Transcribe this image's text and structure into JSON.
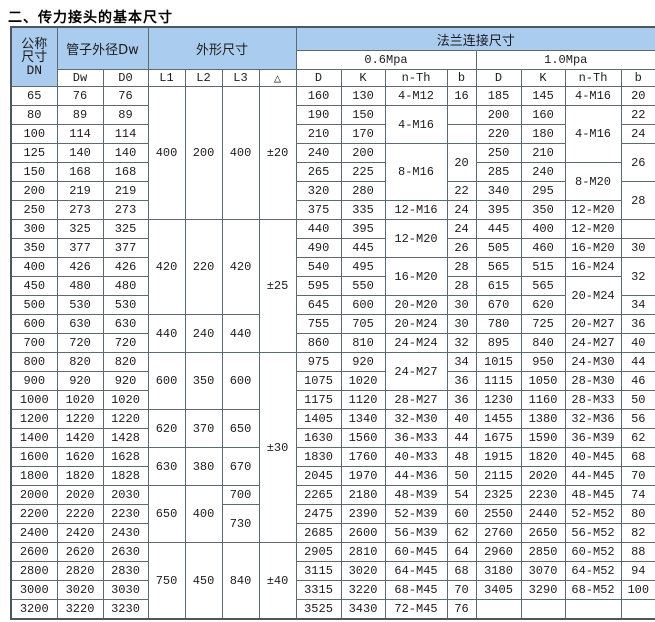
{
  "page": {
    "title": "二、传力接头的基本尺寸"
  },
  "colors": {
    "header_bg": "#aaccee",
    "border": "#5e6a72",
    "page_bg": "#ffffff",
    "text": "#1c1c1c"
  },
  "table": {
    "headers": {
      "dn_lines": [
        "公称",
        "尺寸",
        "DN"
      ],
      "pipe_od": "管子外径Dw",
      "outline": "外形尺寸",
      "flange": "法兰连接尺寸",
      "p06": "0.6Mpa",
      "p10": "1.0Mpa",
      "cols": [
        "Dw",
        "D0",
        "L1",
        "L2",
        "L3",
        "△",
        "D",
        "K",
        "n-Th",
        "b",
        "D",
        "K",
        "n-Th",
        "b"
      ]
    },
    "rows": [
      {
        "c": [
          [
            "65"
          ],
          [
            "76"
          ],
          [
            "76"
          ],
          [
            "400",
            7
          ],
          [
            "200",
            7
          ],
          [
            "400",
            7
          ],
          [
            "±20",
            7
          ],
          [
            "160"
          ],
          [
            "130"
          ],
          [
            "4-M12"
          ],
          [
            "16"
          ],
          [
            "185"
          ],
          [
            "145"
          ],
          [
            "4-M16"
          ],
          [
            "20"
          ]
        ]
      },
      {
        "c": [
          [
            "80"
          ],
          [
            "89"
          ],
          [
            "89"
          ],
          [
            "190"
          ],
          [
            "150"
          ],
          [
            "4-M16",
            2
          ],
          [
            ""
          ],
          [
            "200"
          ],
          [
            "160"
          ],
          [
            "4-M16",
            3
          ],
          [
            "22"
          ]
        ]
      },
      {
        "c": [
          [
            "100"
          ],
          [
            "114"
          ],
          [
            "114"
          ],
          [
            "210"
          ],
          [
            "170"
          ],
          [
            ""
          ],
          [
            "220"
          ],
          [
            "180"
          ],
          [
            "24"
          ]
        ]
      },
      {
        "c": [
          [
            "125"
          ],
          [
            "140"
          ],
          [
            "140"
          ],
          [
            "240"
          ],
          [
            "200"
          ],
          [
            "8-M16",
            3
          ],
          [
            "20",
            2
          ],
          [
            "250"
          ],
          [
            "210"
          ],
          [
            "26",
            2
          ]
        ]
      },
      {
        "c": [
          [
            "150"
          ],
          [
            "168"
          ],
          [
            "168"
          ],
          [
            "265"
          ],
          [
            "225"
          ],
          [
            "285"
          ],
          [
            "240"
          ],
          [
            "8-M20",
            2
          ]
        ]
      },
      {
        "c": [
          [
            "200"
          ],
          [
            "219"
          ],
          [
            "219"
          ],
          [
            "320"
          ],
          [
            "280"
          ],
          [
            "22"
          ],
          [
            "340"
          ],
          [
            "295"
          ],
          [
            "28",
            2
          ]
        ]
      },
      {
        "c": [
          [
            "250"
          ],
          [
            "273"
          ],
          [
            "273"
          ],
          [
            "375"
          ],
          [
            "335"
          ],
          [
            "12-M16"
          ],
          [
            "24"
          ],
          [
            "395"
          ],
          [
            "350"
          ],
          [
            "12-M20"
          ]
        ]
      },
      {
        "c": [
          [
            "300"
          ],
          [
            "325"
          ],
          [
            "325"
          ],
          [
            "420",
            5
          ],
          [
            "220",
            5
          ],
          [
            "420",
            5
          ],
          [
            "±25",
            7
          ],
          [
            "440"
          ],
          [
            "395"
          ],
          [
            "12-M20",
            2
          ],
          [
            "24"
          ],
          [
            "445"
          ],
          [
            "400"
          ],
          [
            "12-M20"
          ],
          [
            ""
          ]
        ]
      },
      {
        "c": [
          [
            "350"
          ],
          [
            "377"
          ],
          [
            "377"
          ],
          [
            "490"
          ],
          [
            "445"
          ],
          [
            "26"
          ],
          [
            "505"
          ],
          [
            "460"
          ],
          [
            "16-M20"
          ],
          [
            "30"
          ]
        ]
      },
      {
        "c": [
          [
            "400"
          ],
          [
            "426"
          ],
          [
            "426"
          ],
          [
            "540"
          ],
          [
            "495"
          ],
          [
            "16-M20",
            2
          ],
          [
            "28"
          ],
          [
            "565"
          ],
          [
            "515"
          ],
          [
            "16-M24"
          ],
          [
            "32",
            2
          ]
        ]
      },
      {
        "c": [
          [
            "450"
          ],
          [
            "480"
          ],
          [
            "480"
          ],
          [
            "595"
          ],
          [
            "550"
          ],
          [
            "28"
          ],
          [
            "615"
          ],
          [
            "565"
          ],
          [
            "20-M24",
            2
          ]
        ]
      },
      {
        "c": [
          [
            "500"
          ],
          [
            "530"
          ],
          [
            "530"
          ],
          [
            "645"
          ],
          [
            "600"
          ],
          [
            "20-M20"
          ],
          [
            "30"
          ],
          [
            "670"
          ],
          [
            "620"
          ],
          [
            "34"
          ]
        ]
      },
      {
        "c": [
          [
            "600"
          ],
          [
            "630"
          ],
          [
            "630"
          ],
          [
            "440",
            2
          ],
          [
            "240",
            2
          ],
          [
            "440",
            2
          ],
          [
            "755"
          ],
          [
            "705"
          ],
          [
            "20-M24"
          ],
          [
            "30"
          ],
          [
            "780"
          ],
          [
            "725"
          ],
          [
            "20-M27"
          ],
          [
            "36"
          ]
        ]
      },
      {
        "c": [
          [
            "700"
          ],
          [
            "720"
          ],
          [
            "720"
          ],
          [
            "860"
          ],
          [
            "810"
          ],
          [
            "24-M24"
          ],
          [
            "32"
          ],
          [
            "895"
          ],
          [
            "840"
          ],
          [
            "24-M27"
          ],
          [
            "40"
          ]
        ]
      },
      {
        "c": [
          [
            "800"
          ],
          [
            "820"
          ],
          [
            "820"
          ],
          [
            "600",
            3
          ],
          [
            "350",
            3
          ],
          [
            "600",
            3
          ],
          [
            "±30",
            10
          ],
          [
            "975"
          ],
          [
            "920"
          ],
          [
            "24-M27",
            2
          ],
          [
            "34"
          ],
          [
            "1015"
          ],
          [
            "950"
          ],
          [
            "24-M30"
          ],
          [
            "44"
          ]
        ]
      },
      {
        "c": [
          [
            "900"
          ],
          [
            "920"
          ],
          [
            "920"
          ],
          [
            "1075"
          ],
          [
            "1020"
          ],
          [
            "36"
          ],
          [
            "1115"
          ],
          [
            "1050"
          ],
          [
            "28-M30"
          ],
          [
            "46"
          ]
        ]
      },
      {
        "c": [
          [
            "1000"
          ],
          [
            "1020"
          ],
          [
            "1020"
          ],
          [
            "1175"
          ],
          [
            "1120"
          ],
          [
            "28-M27"
          ],
          [
            "36"
          ],
          [
            "1230"
          ],
          [
            "1160"
          ],
          [
            "28-M33"
          ],
          [
            "50"
          ]
        ]
      },
      {
        "c": [
          [
            "1200"
          ],
          [
            "1220"
          ],
          [
            "1220"
          ],
          [
            "620",
            2
          ],
          [
            "370",
            2
          ],
          [
            "650",
            2
          ],
          [
            "1405"
          ],
          [
            "1340"
          ],
          [
            "32-M30"
          ],
          [
            "40"
          ],
          [
            "1455"
          ],
          [
            "1380"
          ],
          [
            "32-M36"
          ],
          [
            "56"
          ]
        ]
      },
      {
        "c": [
          [
            "1400"
          ],
          [
            "1420"
          ],
          [
            "1428"
          ],
          [
            "1630"
          ],
          [
            "1560"
          ],
          [
            "36-M33"
          ],
          [
            "44"
          ],
          [
            "1675"
          ],
          [
            "1590"
          ],
          [
            "36-M39"
          ],
          [
            "62"
          ]
        ]
      },
      {
        "c": [
          [
            "1600"
          ],
          [
            "1620"
          ],
          [
            "1628"
          ],
          [
            "630",
            2
          ],
          [
            "380",
            2
          ],
          [
            "670",
            2
          ],
          [
            "1830"
          ],
          [
            "1760"
          ],
          [
            "40-M33"
          ],
          [
            "48"
          ],
          [
            "1915"
          ],
          [
            "1820"
          ],
          [
            "40-M45"
          ],
          [
            "68"
          ]
        ]
      },
      {
        "c": [
          [
            "1800"
          ],
          [
            "1820"
          ],
          [
            "1828"
          ],
          [
            "2045"
          ],
          [
            "1970"
          ],
          [
            "44-M36"
          ],
          [
            "50"
          ],
          [
            "2115"
          ],
          [
            "2020"
          ],
          [
            "44-M45"
          ],
          [
            "70"
          ]
        ]
      },
      {
        "c": [
          [
            "2000"
          ],
          [
            "2020"
          ],
          [
            "2030"
          ],
          [
            "650",
            3
          ],
          [
            "400",
            3
          ],
          [
            "700"
          ],
          [
            "2265"
          ],
          [
            "2180"
          ],
          [
            "48-M39"
          ],
          [
            "54"
          ],
          [
            "2325"
          ],
          [
            "2230"
          ],
          [
            "48-M45"
          ],
          [
            "74"
          ]
        ]
      },
      {
        "c": [
          [
            "2200"
          ],
          [
            "2220"
          ],
          [
            "2230"
          ],
          [
            "730",
            2
          ],
          [
            "2475"
          ],
          [
            "2390"
          ],
          [
            "52-M39"
          ],
          [
            "60"
          ],
          [
            "2550"
          ],
          [
            "2440"
          ],
          [
            "52-M52"
          ],
          [
            "80"
          ]
        ]
      },
      {
        "c": [
          [
            "2400"
          ],
          [
            "2420"
          ],
          [
            "2430"
          ],
          [
            "2685"
          ],
          [
            "2600"
          ],
          [
            "56-M39"
          ],
          [
            "62"
          ],
          [
            "2760"
          ],
          [
            "2650"
          ],
          [
            "56-M52"
          ],
          [
            "82"
          ]
        ]
      },
      {
        "c": [
          [
            "2600"
          ],
          [
            "2620"
          ],
          [
            "2630"
          ],
          [
            "750",
            4
          ],
          [
            "450",
            4
          ],
          [
            "840",
            4
          ],
          [
            "±40",
            4
          ],
          [
            "2905"
          ],
          [
            "2810"
          ],
          [
            "60-M45"
          ],
          [
            "64"
          ],
          [
            "2960"
          ],
          [
            "2850"
          ],
          [
            "60-M52"
          ],
          [
            "88"
          ]
        ]
      },
      {
        "c": [
          [
            "2800"
          ],
          [
            "2820"
          ],
          [
            "2830"
          ],
          [
            "3115"
          ],
          [
            "3020"
          ],
          [
            "64-M45"
          ],
          [
            "68"
          ],
          [
            "3180"
          ],
          [
            "3070"
          ],
          [
            "64-M52"
          ],
          [
            "94"
          ]
        ]
      },
      {
        "c": [
          [
            "3000"
          ],
          [
            "3020"
          ],
          [
            "3030"
          ],
          [
            "3315"
          ],
          [
            "3220"
          ],
          [
            "68-M45"
          ],
          [
            "70"
          ],
          [
            "3405"
          ],
          [
            "3290"
          ],
          [
            "68-M52"
          ],
          [
            "100"
          ]
        ]
      },
      {
        "c": [
          [
            "3200"
          ],
          [
            "3220"
          ],
          [
            "3230"
          ],
          [
            "3525"
          ],
          [
            "3430"
          ],
          [
            "72-M45"
          ],
          [
            "76"
          ],
          [
            ""
          ],
          [
            ""
          ],
          [
            ""
          ],
          [
            ""
          ]
        ]
      }
    ]
  }
}
